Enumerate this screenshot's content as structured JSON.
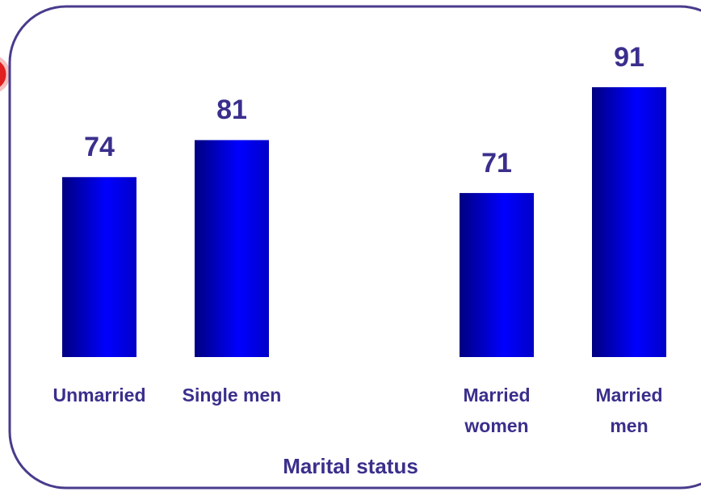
{
  "chart_data": {
    "type": "bar",
    "x_label": "Marital status",
    "categories": [
      "Unmarried",
      "Single men",
      "Married women",
      "Married men"
    ],
    "values": [
      74,
      81,
      71,
      91
    ],
    "color": "#0000e6",
    "ylim": [
      40,
      100
    ]
  }
}
